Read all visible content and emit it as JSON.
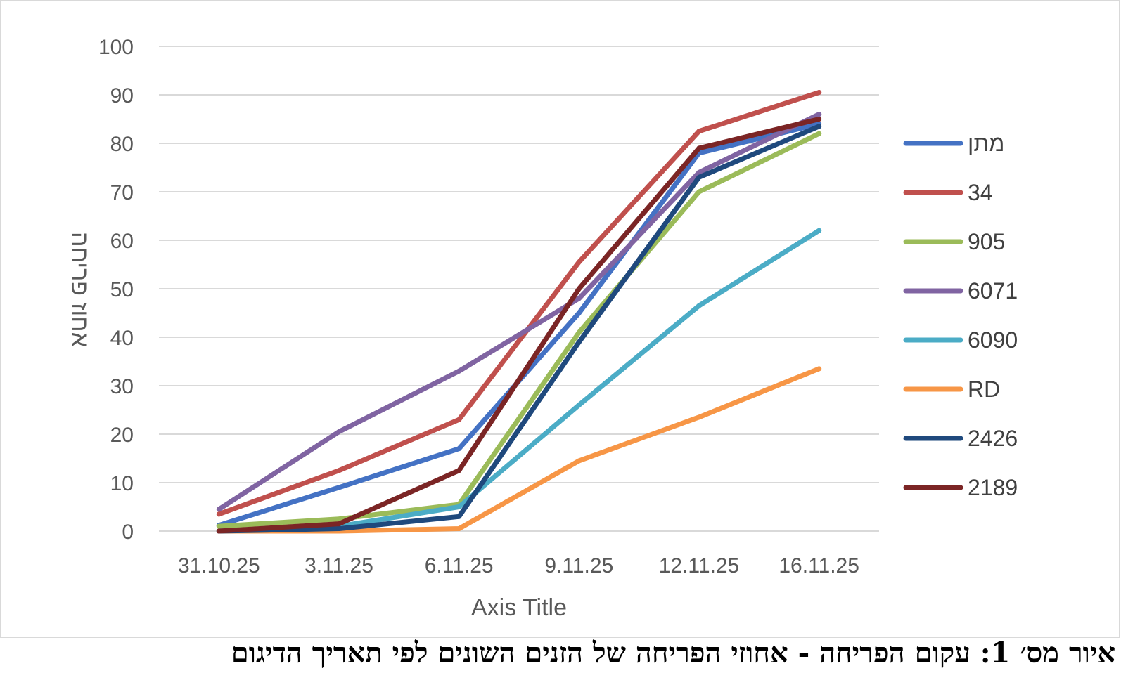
{
  "chart_data": {
    "type": "line",
    "title": "",
    "xlabel": "Axis Title",
    "ylabel": "אחוז פריחה",
    "categories": [
      "31.10.25",
      "3.11.25",
      "6.11.25",
      "9.11.25",
      "12.11.25",
      "16.11.25"
    ],
    "ylim": [
      0,
      100
    ],
    "yticks": [
      "0",
      "10",
      "20",
      "30",
      "40",
      "50",
      "60",
      "70",
      "80",
      "90",
      "100"
    ],
    "grid": true,
    "legend_position": "right",
    "series": [
      {
        "name": "מתן",
        "color": "#4472C4",
        "values": [
          1.2,
          9,
          17,
          45,
          78,
          84
        ]
      },
      {
        "name": "34",
        "color": "#C0504D",
        "values": [
          3.5,
          12.5,
          23,
          55.5,
          82.5,
          90.5
        ]
      },
      {
        "name": "905",
        "color": "#9BBB59",
        "values": [
          1,
          2.5,
          5.5,
          41,
          70,
          82
        ]
      },
      {
        "name": "6071",
        "color": "#8064A2",
        "values": [
          4.5,
          20.5,
          33,
          48,
          74,
          86
        ]
      },
      {
        "name": "6090",
        "color": "#4BACC6",
        "values": [
          0,
          1,
          5,
          26,
          46.5,
          62
        ]
      },
      {
        "name": "RD",
        "color": "#F79646",
        "values": [
          0,
          0,
          0.5,
          14.5,
          23.5,
          33.5
        ]
      },
      {
        "name": "2426",
        "color": "#1F497D",
        "values": [
          0,
          0.5,
          3,
          39,
          73,
          83.5
        ]
      },
      {
        "name": "2189",
        "color": "#7B2525",
        "values": [
          0,
          1.5,
          12.5,
          50,
          79,
          85
        ]
      }
    ]
  },
  "caption": "איור מס׳ 1: עקום הפריחה - אחוזי הפריחה של הזנים השונים לפי תאריך הדיגום"
}
